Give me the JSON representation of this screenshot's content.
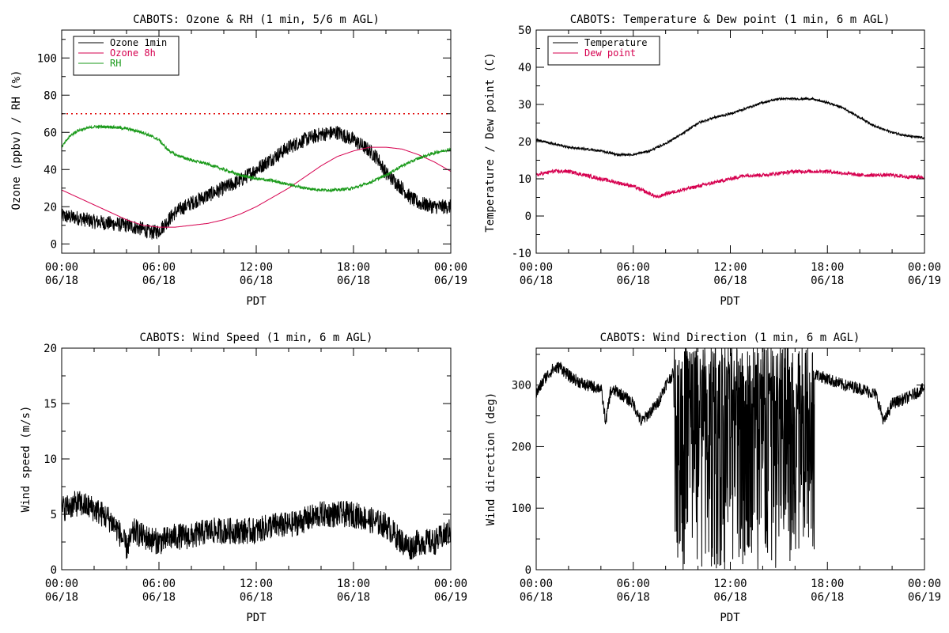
{
  "colors": {
    "black": "#000000",
    "crimson": "#d6004f",
    "green": "#1a9a1a",
    "red_dotted": "#e00000"
  },
  "chart_data": [
    {
      "type": "line",
      "title": "CABOTS: Ozone & RH (1 min, 5/6 m AGL)",
      "xlabel": "PDT",
      "ylabel": "Ozone (ppbv) / RH (%)",
      "x_hours_range": [
        0,
        24
      ],
      "xticks": [
        {
          "time": "00:00",
          "date": "06/18",
          "hour": 0
        },
        {
          "time": "06:00",
          "date": "06/18",
          "hour": 6
        },
        {
          "time": "12:00",
          "date": "06/18",
          "hour": 12
        },
        {
          "time": "18:00",
          "date": "06/18",
          "hour": 18
        },
        {
          "time": "00:00",
          "date": "06/19",
          "hour": 24
        }
      ],
      "ylim": [
        -5,
        115
      ],
      "yticks": [
        0,
        20,
        40,
        60,
        80,
        100
      ],
      "legend": "top-left",
      "reference_line": {
        "y": 70,
        "style": "dotted",
        "color": "#e00000"
      },
      "series": [
        {
          "name": "Ozone 1min",
          "color": "#000000",
          "noise": 4,
          "x": [
            0,
            1,
            2,
            3,
            4,
            5,
            5.5,
            6,
            6.5,
            7,
            8,
            9,
            10,
            11,
            12,
            13,
            14,
            15,
            16,
            17,
            18,
            19,
            19.5,
            20,
            21,
            21.5,
            22,
            23,
            24
          ],
          "y": [
            15,
            14,
            12,
            11,
            10,
            8,
            6,
            7,
            12,
            17,
            22,
            26,
            30,
            34,
            40,
            46,
            52,
            56,
            59,
            60,
            56,
            50,
            46,
            38,
            30,
            25,
            22,
            20,
            20
          ]
        },
        {
          "name": "Ozone 8h",
          "color": "#d6004f",
          "noise": 0,
          "x": [
            0,
            1,
            2,
            3,
            4,
            5,
            6,
            7,
            8,
            9,
            10,
            11,
            12,
            13,
            14,
            15,
            16,
            17,
            18,
            19,
            20,
            21,
            22,
            23,
            24
          ],
          "y": [
            29,
            25,
            21,
            17,
            13,
            10,
            9,
            9,
            10,
            11,
            13,
            16,
            20,
            25,
            30,
            36,
            42,
            47,
            50,
            52,
            52,
            51,
            48,
            44,
            39
          ]
        },
        {
          "name": "RH",
          "color": "#1a9a1a",
          "noise": 0.8,
          "x": [
            0,
            0.5,
            1,
            2,
            3,
            4,
            5,
            5.5,
            6,
            6.5,
            7,
            8,
            9,
            10,
            11,
            12,
            13,
            14,
            15,
            16,
            17,
            18,
            19,
            20,
            21,
            22,
            23,
            24
          ],
          "y": [
            52,
            58,
            61,
            63,
            63,
            62,
            60,
            58,
            56,
            51,
            48,
            45,
            43,
            40,
            37,
            35,
            34,
            32,
            30,
            29,
            29,
            30,
            33,
            37,
            42,
            46,
            49,
            51
          ]
        }
      ]
    },
    {
      "type": "line",
      "title": "CABOTS: Temperature & Dew point (1 min, 6 m AGL)",
      "xlabel": "PDT",
      "ylabel": "Temperature / Dew point (C)",
      "x_hours_range": [
        0,
        24
      ],
      "xticks": [
        {
          "time": "00:00",
          "date": "06/18",
          "hour": 0
        },
        {
          "time": "06:00",
          "date": "06/18",
          "hour": 6
        },
        {
          "time": "12:00",
          "date": "06/18",
          "hour": 12
        },
        {
          "time": "18:00",
          "date": "06/18",
          "hour": 18
        },
        {
          "time": "00:00",
          "date": "06/19",
          "hour": 24
        }
      ],
      "ylim": [
        -10,
        50
      ],
      "yticks": [
        -10,
        0,
        10,
        20,
        30,
        40,
        50
      ],
      "legend": "top-left",
      "series": [
        {
          "name": "Temperature",
          "color": "#000000",
          "noise": 0.3,
          "x": [
            0,
            1,
            2,
            3,
            4,
            5,
            6,
            7,
            8,
            9,
            10,
            11,
            12,
            13,
            14,
            15,
            16,
            17,
            18,
            19,
            20,
            21,
            22,
            23,
            24
          ],
          "y": [
            20.5,
            19.5,
            18.5,
            18,
            17.5,
            16.5,
            16.5,
            17.5,
            19.5,
            22,
            25,
            26.5,
            27.5,
            29,
            30.5,
            31.5,
            31.5,
            31.5,
            30.5,
            29,
            26.5,
            24,
            22.5,
            21.5,
            21
          ]
        },
        {
          "name": "Dew point",
          "color": "#d6004f",
          "noise": 0.5,
          "x": [
            0,
            1,
            2,
            3,
            4,
            5,
            6,
            7,
            7.5,
            8,
            9,
            10,
            11,
            12,
            13,
            14,
            15,
            16,
            17,
            18,
            19,
            20,
            21,
            22,
            23,
            24
          ],
          "y": [
            11,
            12,
            12,
            11,
            10,
            9,
            8,
            6,
            5,
            6,
            7,
            8,
            9,
            10,
            11,
            11,
            11.5,
            12,
            12,
            12,
            11.5,
            11,
            11,
            11,
            10.5,
            10.5
          ]
        }
      ]
    },
    {
      "type": "line",
      "title": "CABOTS: Wind Speed (1 min, 6 m AGL)",
      "xlabel": "PDT",
      "ylabel": "Wind speed (m/s)",
      "x_hours_range": [
        0,
        24
      ],
      "xticks": [
        {
          "time": "00:00",
          "date": "06/18",
          "hour": 0
        },
        {
          "time": "06:00",
          "date": "06/18",
          "hour": 6
        },
        {
          "time": "12:00",
          "date": "06/18",
          "hour": 12
        },
        {
          "time": "18:00",
          "date": "06/18",
          "hour": 18
        },
        {
          "time": "00:00",
          "date": "06/19",
          "hour": 24
        }
      ],
      "ylim": [
        0,
        20
      ],
      "yticks": [
        0,
        5,
        10,
        15,
        20
      ],
      "legend": "none",
      "series": [
        {
          "name": "",
          "color": "#000000",
          "noise": 1.2,
          "x": [
            0,
            1,
            2,
            3,
            3.5,
            4,
            4.5,
            5,
            6,
            7,
            8,
            9,
            10,
            11,
            12,
            13,
            14,
            15,
            16,
            17,
            18,
            19,
            20,
            21,
            21.5,
            22,
            23,
            24
          ],
          "y": [
            5.5,
            6,
            5.5,
            4.5,
            3.5,
            2,
            3.5,
            3,
            2.5,
            3,
            3,
            3.5,
            3.5,
            3.5,
            3.5,
            4,
            4,
            4.5,
            5,
            5,
            5,
            4.5,
            4,
            2.5,
            2,
            2.5,
            2.5,
            3.5
          ]
        }
      ]
    },
    {
      "type": "line",
      "title": "CABOTS: Wind Direction (1 min, 6 m AGL)",
      "xlabel": "PDT",
      "ylabel": "Wind direction (deg)",
      "x_hours_range": [
        0,
        24
      ],
      "xticks": [
        {
          "time": "00:00",
          "date": "06/18",
          "hour": 0
        },
        {
          "time": "06:00",
          "date": "06/18",
          "hour": 6
        },
        {
          "time": "12:00",
          "date": "06/18",
          "hour": 12
        },
        {
          "time": "18:00",
          "date": "06/18",
          "hour": 18
        },
        {
          "time": "00:00",
          "date": "06/19",
          "hour": 24
        }
      ],
      "ylim": [
        0,
        360
      ],
      "yticks": [
        0,
        100,
        200,
        300
      ],
      "legend": "none",
      "series": [
        {
          "name": "",
          "color": "#000000",
          "noise": 10,
          "x": [
            0,
            0.5,
            1,
            1.5,
            2,
            3,
            4,
            4.3,
            4.6,
            5,
            6,
            6.5,
            7,
            7.5,
            8,
            8.5,
            17,
            18,
            19,
            20,
            21,
            21.5,
            22,
            23,
            24
          ],
          "y": [
            285,
            310,
            325,
            330,
            315,
            300,
            295,
            240,
            290,
            290,
            270,
            240,
            255,
            270,
            300,
            320,
            320,
            310,
            300,
            295,
            285,
            240,
            270,
            280,
            295
          ]
        }
      ],
      "chaotic_span_hours": [
        8.5,
        17.2
      ]
    }
  ]
}
